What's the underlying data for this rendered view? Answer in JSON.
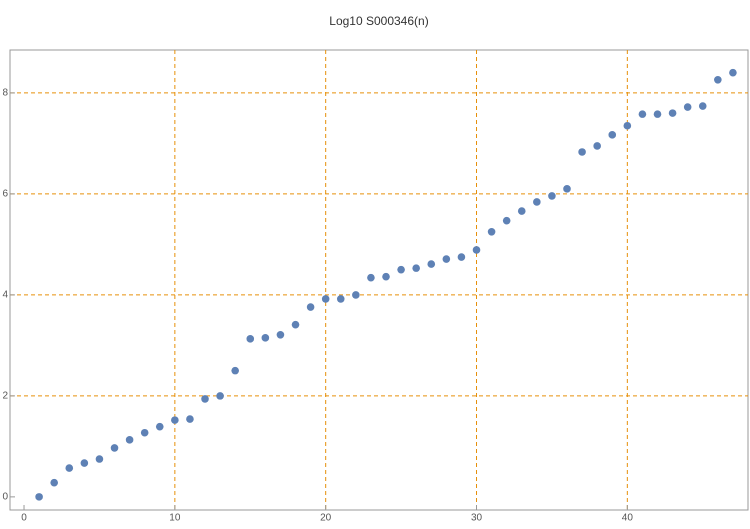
{
  "chart_data": {
    "type": "scatter",
    "title": "Log10 S000346(n)",
    "x": [
      1,
      2,
      3,
      4,
      5,
      6,
      7,
      8,
      9,
      10,
      11,
      12,
      13,
      14,
      15,
      16,
      17,
      18,
      19,
      20,
      21,
      22,
      23,
      24,
      25,
      26,
      27,
      28,
      29,
      30,
      31,
      32,
      33,
      34,
      35,
      36,
      37,
      38,
      39,
      40,
      41,
      42,
      43,
      44,
      45,
      46,
      47
    ],
    "series": [
      {
        "color": "#5e81b5",
        "values": [
          0,
          0.28,
          0.57,
          0.67,
          0.75,
          0.97,
          1.13,
          1.27,
          1.39,
          1.52,
          1.54,
          1.94,
          2.0,
          2.5,
          3.13,
          3.15,
          3.21,
          3.41,
          3.76,
          3.92,
          3.92,
          4.0,
          4.34,
          4.36,
          4.5,
          4.53,
          4.61,
          4.71,
          4.75,
          4.89,
          5.25,
          5.47,
          5.66,
          5.84,
          5.96,
          6.1,
          6.83,
          6.95,
          7.17,
          7.35,
          7.58,
          7.58,
          7.6,
          7.72,
          7.74,
          8.26,
          8.4
        ]
      }
    ],
    "xlim": [
      -0.93,
      48
    ],
    "ylim": [
      -0.26,
      8.85
    ],
    "xticks": [
      0,
      10,
      20,
      30,
      40
    ],
    "yticks": [
      0,
      2,
      4,
      6,
      8
    ],
    "xgrid": [
      10,
      20,
      30,
      40
    ],
    "ygrid": [
      2,
      4,
      6,
      8
    ],
    "grid_color": "#e6900a"
  }
}
